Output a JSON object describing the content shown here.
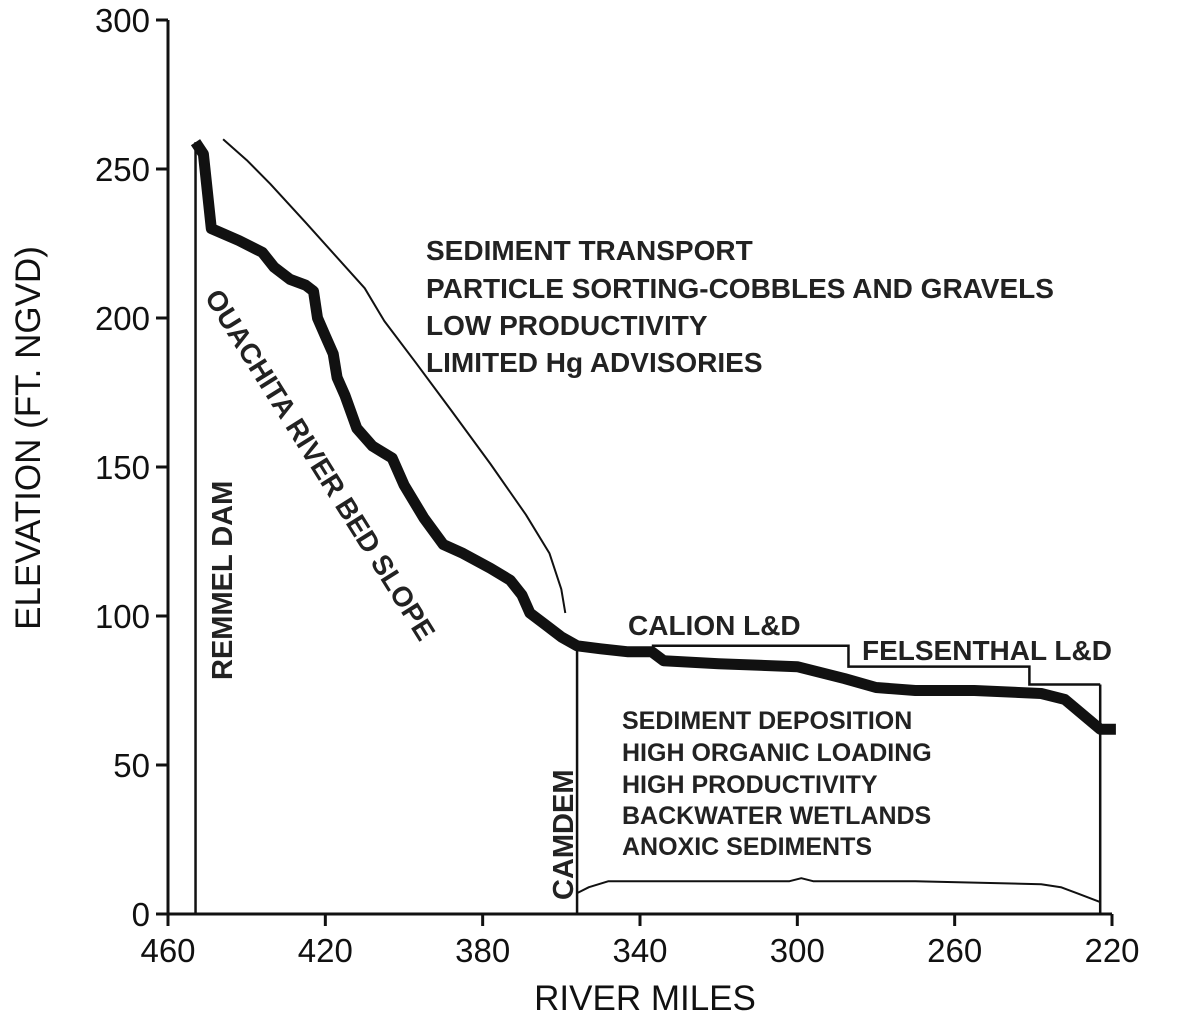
{
  "chart_data": {
    "type": "line",
    "xlabel": "RIVER MILES",
    "ylabel": "ELEVATION (FT. NGVD)",
    "xlim": [
      460,
      220
    ],
    "ylim": [
      0,
      300
    ],
    "x_ticks": [
      "460",
      "420",
      "380",
      "340",
      "300",
      "260",
      "220"
    ],
    "y_ticks": [
      "0",
      "50",
      "100",
      "150",
      "200",
      "250",
      "300"
    ],
    "series": [
      {
        "name": "OUACHITA RIVER BED SLOPE",
        "points": [
          [
            453,
            259
          ],
          [
            451,
            255
          ],
          [
            449,
            230
          ],
          [
            442,
            226
          ],
          [
            436,
            222
          ],
          [
            433,
            217
          ],
          [
            429,
            213
          ],
          [
            425,
            211
          ],
          [
            423,
            209
          ],
          [
            422,
            200
          ],
          [
            420,
            194
          ],
          [
            418,
            188
          ],
          [
            417,
            180
          ],
          [
            415,
            174
          ],
          [
            412,
            163
          ],
          [
            408,
            157
          ],
          [
            403,
            153
          ],
          [
            400,
            144
          ],
          [
            395,
            133
          ],
          [
            390,
            124
          ],
          [
            385,
            121
          ],
          [
            378,
            116
          ],
          [
            373,
            112
          ],
          [
            370,
            107
          ],
          [
            368,
            101
          ],
          [
            364,
            97
          ],
          [
            360,
            93
          ],
          [
            356,
            90
          ],
          [
            350,
            89
          ],
          [
            343,
            88
          ],
          [
            337,
            88
          ],
          [
            334,
            85
          ],
          [
            320,
            84
          ],
          [
            300,
            83
          ],
          [
            288,
            79
          ],
          [
            280,
            76
          ],
          [
            270,
            75
          ],
          [
            255,
            75
          ],
          [
            238,
            74
          ],
          [
            232,
            72
          ],
          [
            223,
            62
          ],
          [
            219,
            62
          ]
        ]
      }
    ],
    "annotations": {
      "upper_reach": [
        "SEDIMENT TRANSPORT",
        "PARTICLE SORTING-COBBLES AND GRAVELS",
        "LOW PRODUCTIVITY",
        "LIMITED Hg ADVISORIES"
      ],
      "lower_reach": [
        "SEDIMENT DEPOSITION",
        "HIGH ORGANIC LOADING",
        "HIGH PRODUCTIVITY",
        "BACKWATER WETLANDS",
        "ANOXIC SEDIMENTS"
      ],
      "dam": "REMMEL DAM",
      "camden": "CAMDEM",
      "calion": "CALION L&D",
      "felsenthal": "FELSENTHAL L&D"
    },
    "markers": {
      "remmel_dam_mile": 453,
      "camden_mile": 356,
      "calion_mile": 287,
      "felsenthal_mile": 241,
      "downstream_end_mile": 223
    },
    "bracket_upper": [
      [
        446,
        260
      ],
      [
        440,
        253
      ],
      [
        434,
        245
      ],
      [
        425,
        232
      ],
      [
        410,
        210
      ],
      [
        405,
        199
      ],
      [
        397,
        185
      ],
      [
        388,
        169
      ],
      [
        378,
        151
      ],
      [
        369,
        134
      ],
      [
        363,
        121
      ],
      [
        360,
        109
      ],
      [
        359,
        101
      ]
    ],
    "bracket_lower": [
      [
        356,
        7
      ],
      [
        353,
        9
      ],
      [
        348,
        11
      ],
      [
        330,
        11
      ],
      [
        302,
        11
      ],
      [
        299,
        12
      ],
      [
        296,
        11
      ],
      [
        270,
        11
      ],
      [
        238,
        10
      ],
      [
        233,
        9
      ],
      [
        229,
        7
      ],
      [
        223,
        4
      ]
    ],
    "pools": {
      "calion_pool_elev": 90,
      "felsenthal_pool_elev": 83,
      "downstream_pool_elev": 77
    }
  }
}
